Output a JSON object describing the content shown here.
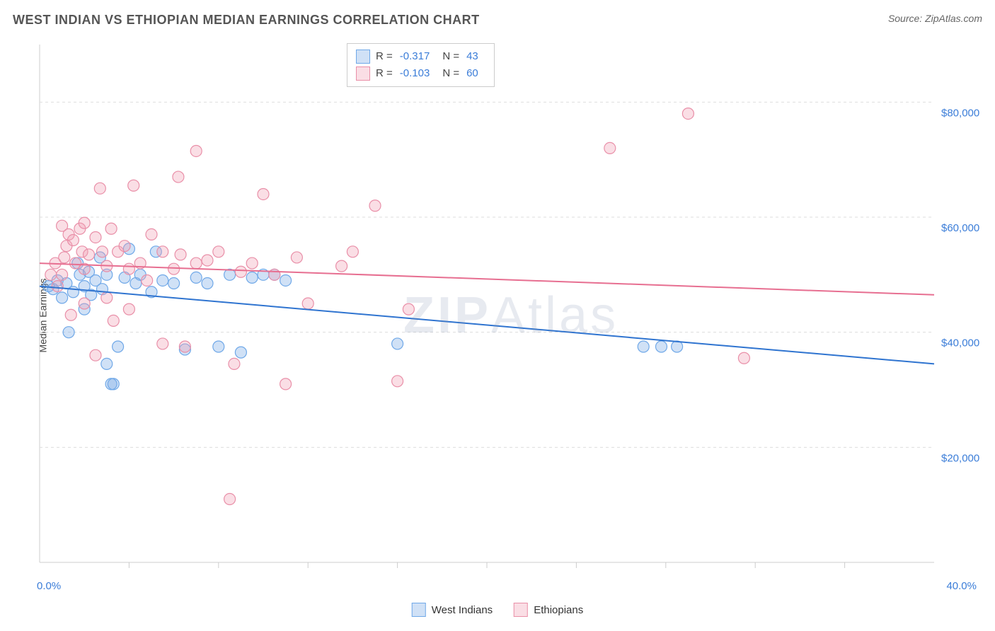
{
  "title": "WEST INDIAN VS ETHIOPIAN MEDIAN EARNINGS CORRELATION CHART",
  "source": "Source: ZipAtlas.com",
  "watermark_a": "ZIP",
  "watermark_b": "Atlas",
  "y_axis_label": "Median Earnings",
  "x_min_label": "0.0%",
  "x_max_label": "40.0%",
  "chart": {
    "type": "scatter",
    "x_domain": [
      0,
      40
    ],
    "y_domain": [
      0,
      90000
    ],
    "y_gridlines": [
      20000,
      40000,
      60000,
      80000
    ],
    "y_tick_labels": [
      "$20,000",
      "$40,000",
      "$60,000",
      "$80,000"
    ],
    "grid_color": "#dddddd",
    "grid_dash": "4,4",
    "axis_color": "#cccccc",
    "background": "#ffffff",
    "marker_radius": 8,
    "marker_stroke_width": 1.2,
    "line_width": 2,
    "series": [
      {
        "name": "West Indians",
        "fill": "rgba(120,170,230,0.35)",
        "stroke": "#6fa8e8",
        "line_color": "#2f74d0",
        "R": "-0.317",
        "N": "43",
        "trend": {
          "x1": 0,
          "y1": 48000,
          "x2": 40,
          "y2": 34500
        },
        "points": [
          [
            0.4,
            48000
          ],
          [
            0.6,
            47500
          ],
          [
            0.8,
            49000
          ],
          [
            1.0,
            46000
          ],
          [
            1.2,
            48500
          ],
          [
            1.3,
            40000
          ],
          [
            1.5,
            47000
          ],
          [
            1.7,
            52000
          ],
          [
            1.8,
            50000
          ],
          [
            2.0,
            44000
          ],
          [
            2.0,
            48000
          ],
          [
            2.2,
            50500
          ],
          [
            2.3,
            46500
          ],
          [
            2.5,
            49000
          ],
          [
            2.7,
            53000
          ],
          [
            2.8,
            47500
          ],
          [
            3.0,
            34500
          ],
          [
            3.0,
            50000
          ],
          [
            3.2,
            31000
          ],
          [
            3.3,
            31000
          ],
          [
            3.5,
            37500
          ],
          [
            3.8,
            49500
          ],
          [
            4.0,
            54500
          ],
          [
            4.3,
            48500
          ],
          [
            4.5,
            50000
          ],
          [
            5.0,
            47000
          ],
          [
            5.2,
            54000
          ],
          [
            5.5,
            49000
          ],
          [
            6.0,
            48500
          ],
          [
            6.5,
            37000
          ],
          [
            7.0,
            49500
          ],
          [
            7.5,
            48500
          ],
          [
            8.0,
            37500
          ],
          [
            8.5,
            50000
          ],
          [
            9.0,
            36500
          ],
          [
            9.5,
            49500
          ],
          [
            10.0,
            50000
          ],
          [
            10.5,
            50000
          ],
          [
            11.0,
            49000
          ],
          [
            16.0,
            38000
          ],
          [
            27.0,
            37500
          ],
          [
            27.8,
            37500
          ],
          [
            28.5,
            37500
          ]
        ]
      },
      {
        "name": "Ethiopians",
        "fill": "rgba(240,160,180,0.35)",
        "stroke": "#e98fa8",
        "line_color": "#e76f91",
        "R": "-0.103",
        "N": "60",
        "trend": {
          "x1": 0,
          "y1": 52000,
          "x2": 40,
          "y2": 46500
        },
        "points": [
          [
            0.5,
            50000
          ],
          [
            0.7,
            52000
          ],
          [
            0.8,
            48000
          ],
          [
            1.0,
            58500
          ],
          [
            1.0,
            50000
          ],
          [
            1.1,
            53000
          ],
          [
            1.2,
            55000
          ],
          [
            1.3,
            57000
          ],
          [
            1.4,
            43000
          ],
          [
            1.5,
            56000
          ],
          [
            1.6,
            52000
          ],
          [
            1.8,
            58000
          ],
          [
            1.9,
            54000
          ],
          [
            2.0,
            51000
          ],
          [
            2.0,
            45000
          ],
          [
            2.0,
            59000
          ],
          [
            2.2,
            53500
          ],
          [
            2.5,
            56500
          ],
          [
            2.5,
            36000
          ],
          [
            2.7,
            65000
          ],
          [
            2.8,
            54000
          ],
          [
            3.0,
            51500
          ],
          [
            3.0,
            46000
          ],
          [
            3.2,
            58000
          ],
          [
            3.3,
            42000
          ],
          [
            3.5,
            54000
          ],
          [
            3.8,
            55000
          ],
          [
            4.0,
            51000
          ],
          [
            4.0,
            44000
          ],
          [
            4.2,
            65500
          ],
          [
            4.5,
            52000
          ],
          [
            4.8,
            49000
          ],
          [
            5.0,
            57000
          ],
          [
            5.5,
            54000
          ],
          [
            5.5,
            38000
          ],
          [
            6.0,
            51000
          ],
          [
            6.2,
            67000
          ],
          [
            6.3,
            53500
          ],
          [
            6.5,
            37500
          ],
          [
            7.0,
            71500
          ],
          [
            7.0,
            52000
          ],
          [
            7.5,
            52500
          ],
          [
            8.0,
            54000
          ],
          [
            8.5,
            11000
          ],
          [
            8.7,
            34500
          ],
          [
            9.0,
            50500
          ],
          [
            9.5,
            52000
          ],
          [
            10.0,
            64000
          ],
          [
            10.5,
            50000
          ],
          [
            11.0,
            31000
          ],
          [
            11.5,
            53000
          ],
          [
            12.0,
            45000
          ],
          [
            13.5,
            51500
          ],
          [
            14.0,
            54000
          ],
          [
            15.0,
            62000
          ],
          [
            16.0,
            31500
          ],
          [
            16.5,
            44000
          ],
          [
            25.5,
            72000
          ],
          [
            29.0,
            78000
          ],
          [
            31.5,
            35500
          ]
        ]
      }
    ]
  },
  "legend_bottom": [
    {
      "name": "West Indians",
      "fill": "rgba(120,170,230,0.35)",
      "stroke": "#6fa8e8"
    },
    {
      "name": "Ethiopians",
      "fill": "rgba(240,160,180,0.35)",
      "stroke": "#e98fa8"
    }
  ],
  "colors": {
    "title": "#555555",
    "value": "#3b7dd8"
  }
}
